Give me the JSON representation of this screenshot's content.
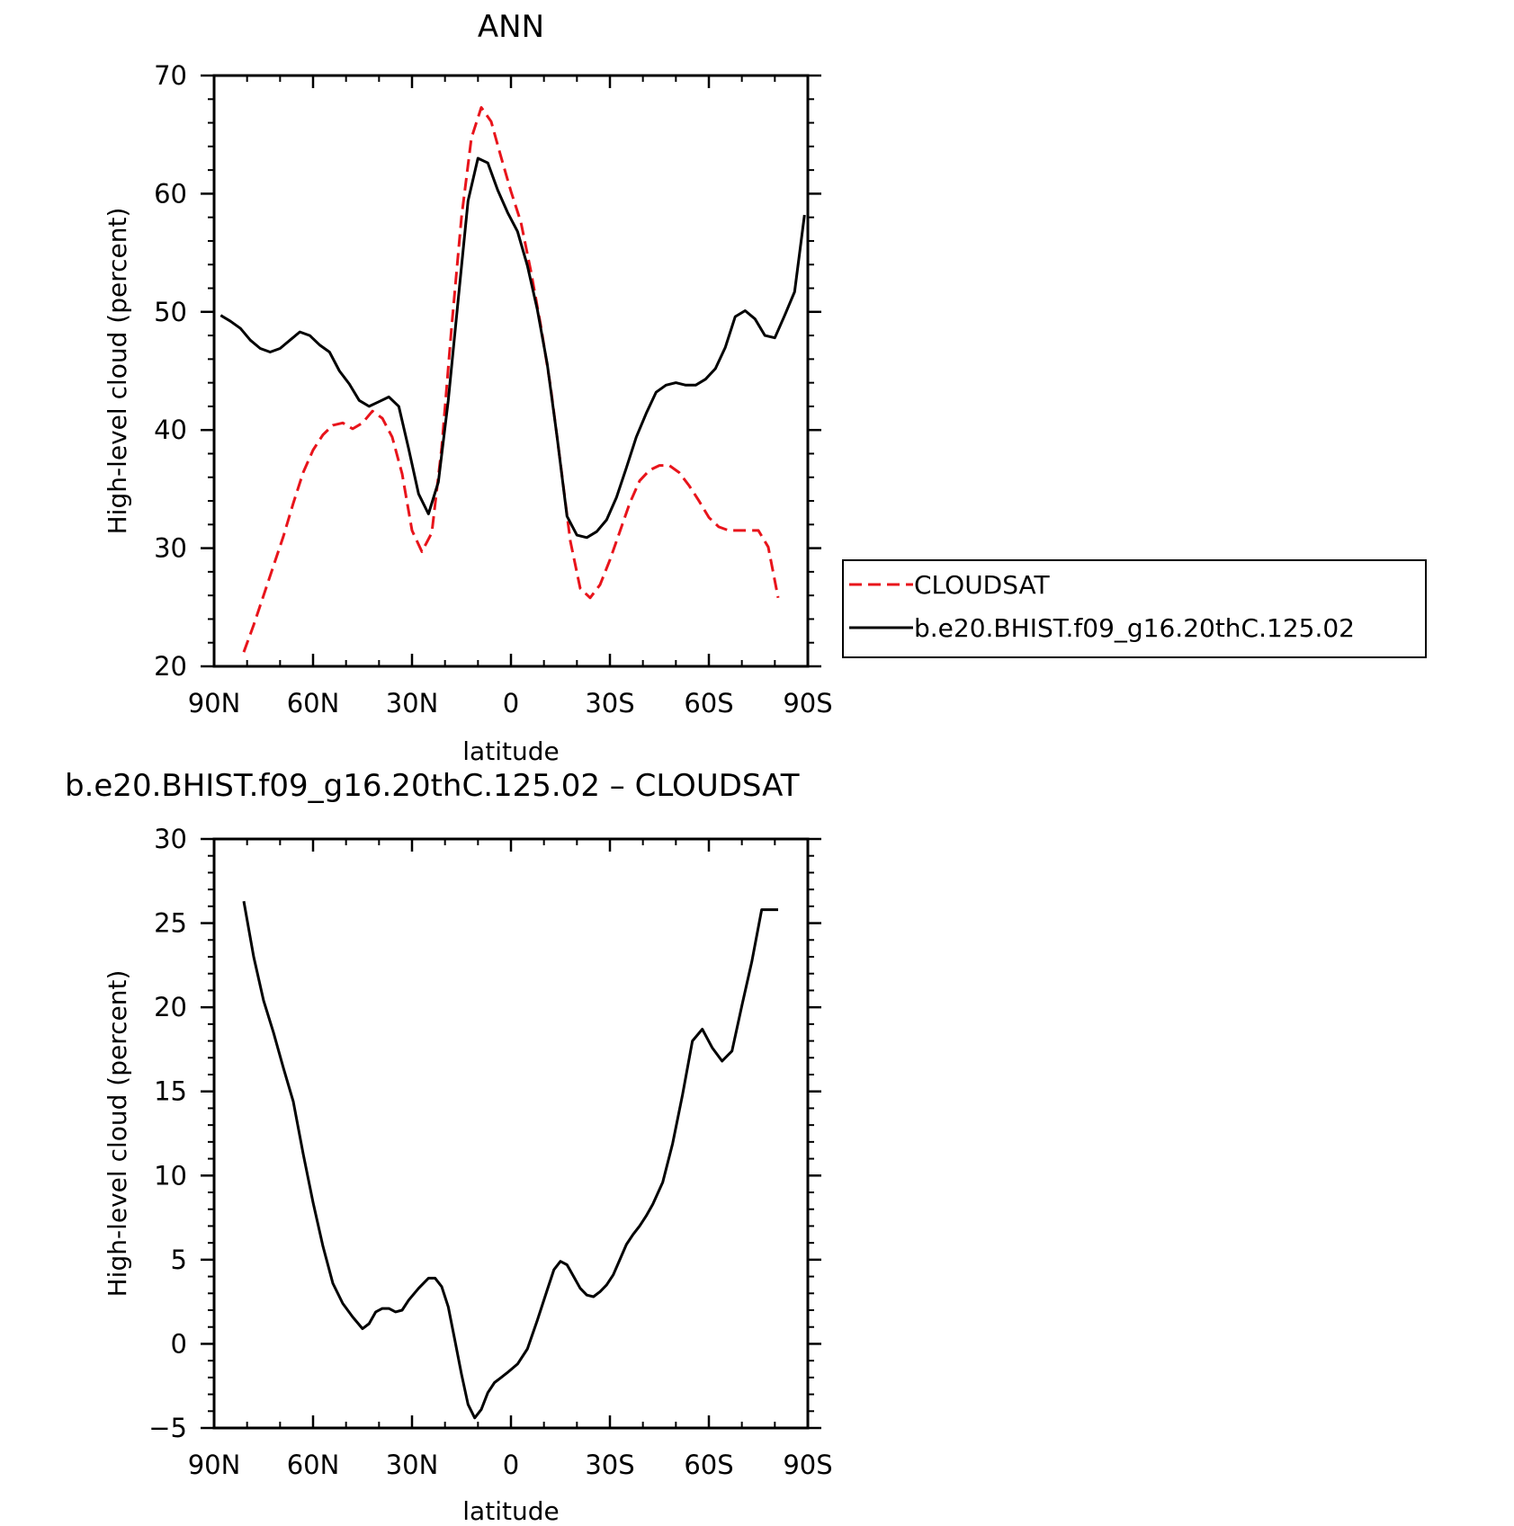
{
  "chart_data": [
    {
      "type": "line",
      "title": "ANN",
      "xlabel": "latitude",
      "ylabel": "High-level cloud (percent)",
      "xlim": [
        90,
        -90
      ],
      "ylim": [
        20,
        70
      ],
      "xticks": [
        {
          "value": 90,
          "label": "90N"
        },
        {
          "value": 60,
          "label": "60N"
        },
        {
          "value": 30,
          "label": "30N"
        },
        {
          "value": 0,
          "label": "0"
        },
        {
          "value": -30,
          "label": "30S"
        },
        {
          "value": -60,
          "label": "60S"
        },
        {
          "value": -90,
          "label": "90S"
        }
      ],
      "yticks": [
        {
          "value": 20,
          "label": "20"
        },
        {
          "value": 30,
          "label": "30"
        },
        {
          "value": 40,
          "label": "40"
        },
        {
          "value": 50,
          "label": "50"
        },
        {
          "value": 60,
          "label": "60"
        },
        {
          "value": 70,
          "label": "70"
        }
      ],
      "legend_position": "right",
      "series": [
        {
          "name": "CLOUDSAT",
          "color": "#e8141b",
          "style": "dashed",
          "x": [
            81,
            78,
            75,
            72,
            69,
            66,
            63,
            60,
            57,
            54,
            51,
            48,
            45,
            42,
            39,
            36,
            33,
            30,
            27,
            24,
            21,
            18,
            15,
            12,
            9,
            6,
            3,
            0,
            -3,
            -6,
            -9,
            -12,
            -15,
            -18,
            -21,
            -24,
            -27,
            -30,
            -33,
            -36,
            -39,
            -42,
            -45,
            -48,
            -51,
            -54,
            -57,
            -60,
            -63,
            -66,
            -69,
            -72,
            -75,
            -78,
            -81
          ],
          "y": [
            21.2,
            23.5,
            26.0,
            28.5,
            31.0,
            33.8,
            36.4,
            38.3,
            39.6,
            40.4,
            40.6,
            40.1,
            40.6,
            41.6,
            41.0,
            39.4,
            36.3,
            31.5,
            29.7,
            31.3,
            38.5,
            48.7,
            58.0,
            64.7,
            67.3,
            66.1,
            63.1,
            60.2,
            57.6,
            53.5,
            48.9,
            43.7,
            37.2,
            30.6,
            26.6,
            25.8,
            26.9,
            29.0,
            31.4,
            33.8,
            35.7,
            36.6,
            37.0,
            37.0,
            36.4,
            35.3,
            34.0,
            32.6,
            31.8,
            31.5,
            31.5,
            31.5,
            31.5,
            30.1,
            25.8
          ]
        },
        {
          "name": "b.e20.BHIST.f09_g16.20thC.125.02",
          "color": "#000000",
          "style": "solid",
          "x": [
            88,
            85,
            82,
            79,
            76,
            73,
            70,
            67,
            64,
            61,
            58,
            55,
            52,
            49,
            46,
            43,
            40,
            37,
            34,
            31,
            28,
            25,
            22,
            19,
            16,
            13,
            10,
            7,
            4,
            1,
            -2,
            -5,
            -8,
            -11,
            -14,
            -17,
            -20,
            -23,
            -26,
            -29,
            -32,
            -35,
            -38,
            -41,
            -44,
            -47,
            -50,
            -53,
            -56,
            -59,
            -62,
            -65,
            -68,
            -71,
            -74,
            -77,
            -80,
            -83,
            -86,
            -89
          ],
          "y": [
            49.7,
            49.2,
            48.6,
            47.6,
            46.9,
            46.6,
            46.9,
            47.6,
            48.3,
            48.0,
            47.2,
            46.6,
            45.0,
            43.9,
            42.5,
            42.0,
            42.4,
            42.8,
            42.0,
            38.4,
            34.6,
            32.9,
            35.6,
            42.5,
            51.0,
            59.4,
            63.0,
            62.6,
            60.3,
            58.4,
            56.8,
            53.9,
            50.2,
            45.6,
            39.4,
            32.7,
            31.1,
            30.9,
            31.4,
            32.4,
            34.3,
            36.8,
            39.4,
            41.4,
            43.2,
            43.8,
            44.0,
            43.8,
            43.8,
            44.3,
            45.2,
            47.0,
            49.6,
            50.1,
            49.4,
            48.0,
            47.8,
            49.7,
            51.7,
            58.2
          ]
        }
      ]
    },
    {
      "type": "line",
      "title": "b.e20.BHIST.f09_g16.20thC.125.02 – CLOUDSAT",
      "xlabel": "latitude",
      "ylabel": "High-level cloud (percent)",
      "xlim": [
        90,
        -90
      ],
      "ylim": [
        -5,
        30
      ],
      "xticks": [
        {
          "value": 90,
          "label": "90N"
        },
        {
          "value": 60,
          "label": "60N"
        },
        {
          "value": 30,
          "label": "30N"
        },
        {
          "value": 0,
          "label": "0"
        },
        {
          "value": -30,
          "label": "30S"
        },
        {
          "value": -60,
          "label": "60S"
        },
        {
          "value": -90,
          "label": "90S"
        }
      ],
      "yticks": [
        {
          "value": -5,
          "label": "−5"
        },
        {
          "value": 0,
          "label": "0"
        },
        {
          "value": 5,
          "label": "5"
        },
        {
          "value": 10,
          "label": "10"
        },
        {
          "value": 15,
          "label": "15"
        },
        {
          "value": 20,
          "label": "20"
        },
        {
          "value": 25,
          "label": "25"
        },
        {
          "value": 30,
          "label": "30"
        }
      ],
      "series": [
        {
          "color": "#000000",
          "style": "solid",
          "x": [
            81,
            78,
            75,
            72,
            69,
            66,
            63,
            60,
            57,
            54,
            51,
            48,
            45,
            43,
            41,
            39,
            37,
            35,
            33,
            31,
            28,
            25,
            23,
            21,
            19,
            17,
            15,
            13,
            11,
            9,
            7,
            5,
            3,
            1,
            -2,
            -5,
            -8,
            -11,
            -13,
            -15,
            -17,
            -19,
            -21,
            -23,
            -25,
            -27,
            -29,
            -31,
            -33,
            -35,
            -37,
            -39,
            -41,
            -43,
            -46,
            -49,
            -52,
            -55,
            -58,
            -61,
            -64,
            -67,
            -70,
            -73,
            -76,
            -78,
            -81
          ],
          "y": [
            26.3,
            23.0,
            20.4,
            18.5,
            16.4,
            14.4,
            11.3,
            8.4,
            5.8,
            3.6,
            2.4,
            1.6,
            0.9,
            1.2,
            1.9,
            2.1,
            2.1,
            1.9,
            2.0,
            2.6,
            3.3,
            3.9,
            3.9,
            3.4,
            2.2,
            0.2,
            -1.8,
            -3.6,
            -4.4,
            -3.9,
            -2.9,
            -2.3,
            -2.0,
            -1.7,
            -1.2,
            -0.3,
            1.4,
            3.2,
            4.4,
            4.9,
            4.7,
            4.0,
            3.3,
            2.9,
            2.8,
            3.1,
            3.5,
            4.1,
            5.0,
            5.9,
            6.5,
            7.0,
            7.6,
            8.3,
            9.6,
            11.9,
            14.8,
            18.0,
            18.7,
            17.6,
            16.8,
            17.4,
            20.1,
            22.7,
            25.8,
            25.8,
            25.8
          ]
        }
      ]
    }
  ]
}
